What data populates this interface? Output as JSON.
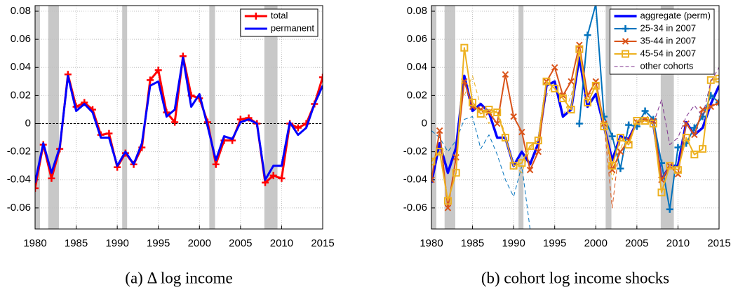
{
  "chart_data": [
    {
      "type": "line",
      "caption": "(a) Δ log income",
      "x": [
        1980,
        1981,
        1982,
        1983,
        1984,
        1985,
        1986,
        1987,
        1988,
        1989,
        1990,
        1991,
        1992,
        1993,
        1994,
        1995,
        1996,
        1997,
        1998,
        1999,
        2000,
        2001,
        2002,
        2003,
        2004,
        2005,
        2006,
        2007,
        2008,
        2009,
        2010,
        2011,
        2012,
        2013,
        2014,
        2015
      ],
      "series": [
        {
          "name": "total",
          "color": "#ff0000",
          "width": 3,
          "marker": "+",
          "values": [
            -0.046,
            -0.015,
            -0.039,
            -0.018,
            0.035,
            0.012,
            0.015,
            0.01,
            -0.008,
            -0.007,
            -0.031,
            -0.021,
            -0.029,
            -0.017,
            0.031,
            0.038,
            0.008,
            0.001,
            0.048,
            0.02,
            0.018,
            0.001,
            -0.029,
            -0.012,
            -0.012,
            0.003,
            0.004,
            0.0,
            -0.042,
            -0.037,
            -0.039,
            0.0,
            -0.003,
            0.0,
            0.014,
            0.033
          ]
        },
        {
          "name": "permanent",
          "color": "#0000ff",
          "width": 3,
          "values": [
            -0.042,
            -0.014,
            -0.035,
            -0.017,
            0.034,
            0.009,
            0.014,
            0.008,
            -0.01,
            -0.01,
            -0.03,
            -0.02,
            -0.029,
            -0.014,
            0.027,
            0.03,
            0.005,
            0.01,
            0.047,
            0.012,
            0.021,
            -0.002,
            -0.026,
            -0.009,
            -0.011,
            0.001,
            0.003,
            0.0,
            -0.04,
            -0.03,
            -0.03,
            0.001,
            -0.008,
            -0.003,
            0.014,
            0.027
          ]
        }
      ],
      "recessions": [
        [
          1980,
          1980.6
        ],
        [
          1981.6,
          1982.9
        ],
        [
          1990.6,
          1991.2
        ],
        [
          2001.2,
          2001.9
        ],
        [
          2007.9,
          2009.5
        ]
      ],
      "xlim": [
        1980,
        2015
      ],
      "xticks": [
        1980,
        1985,
        1990,
        1995,
        2000,
        2005,
        2010,
        2015
      ],
      "ylim": [
        -0.075,
        0.084
      ],
      "yticks": [
        -0.06,
        -0.04,
        -0.02,
        0,
        0.02,
        0.04,
        0.06,
        0.08
      ],
      "grid": true,
      "zero_line": true,
      "legend": "upper right"
    },
    {
      "type": "line",
      "caption": "(b) cohort log income shocks",
      "x": [
        1980,
        1981,
        1982,
        1983,
        1984,
        1985,
        1986,
        1987,
        1988,
        1989,
        1990,
        1991,
        1992,
        1993,
        1994,
        1995,
        1996,
        1997,
        1998,
        1999,
        2000,
        2001,
        2002,
        2003,
        2004,
        2005,
        2006,
        2007,
        2008,
        2009,
        2010,
        2011,
        2012,
        2013,
        2014,
        2015
      ],
      "series": [
        {
          "color": "#0072bd",
          "width": 1,
          "dash": true,
          "values": [
            -0.005,
            -0.01,
            -0.02,
            -0.012,
            0.003,
            0.005,
            -0.018,
            -0.008,
            -0.022,
            -0.04,
            -0.052,
            -0.03,
            -0.075,
            null,
            null,
            null,
            null,
            null,
            null,
            null,
            null,
            null,
            null,
            null,
            null,
            null,
            null,
            null,
            null,
            null,
            null,
            null,
            null,
            null,
            null,
            null
          ]
        },
        {
          "color": "#d95319",
          "width": 1,
          "dash": true,
          "values": [
            null,
            null,
            null,
            null,
            null,
            null,
            null,
            null,
            null,
            null,
            null,
            null,
            null,
            null,
            null,
            null,
            null,
            null,
            null,
            null,
            null,
            0.0,
            -0.06,
            -0.01,
            -0.015,
            0.003,
            null,
            null,
            null,
            null,
            null,
            null,
            null,
            null,
            null,
            null
          ]
        },
        {
          "color": "#edb120",
          "width": 1,
          "dash": true,
          "values": [
            null,
            null,
            null,
            null,
            0.02,
            0.034,
            0.012,
            0.0,
            0.01,
            -0.008,
            -0.03,
            -0.035,
            -0.018,
            -0.01,
            0.02,
            0.03,
            0.005,
            0.02,
            0.046,
            0.015,
            0.028,
            0.0,
            -0.04,
            -0.018,
            -0.005,
            null,
            null,
            null,
            null,
            null,
            null,
            null,
            null,
            null,
            null,
            null
          ]
        },
        {
          "name": "aggregate (perm)",
          "color": "#0000ff",
          "width": 3.5,
          "values": [
            -0.042,
            -0.014,
            -0.035,
            -0.017,
            0.034,
            0.009,
            0.014,
            0.008,
            -0.01,
            -0.01,
            -0.03,
            -0.02,
            -0.029,
            -0.014,
            0.027,
            0.03,
            0.005,
            0.01,
            0.047,
            0.012,
            0.021,
            -0.002,
            -0.026,
            -0.009,
            -0.011,
            0.001,
            0.003,
            0.0,
            -0.04,
            -0.03,
            -0.03,
            0.001,
            -0.008,
            -0.003,
            0.014,
            0.027
          ]
        },
        {
          "name": "25-34 in 2007",
          "color": "#0072bd",
          "width": 2,
          "marker": "+",
          "values": [
            null,
            null,
            null,
            null,
            null,
            null,
            null,
            null,
            null,
            null,
            null,
            null,
            null,
            null,
            null,
            null,
            null,
            null,
            0.0,
            0.063,
            0.085,
            0.005,
            -0.009,
            -0.032,
            -0.001,
            -0.002,
            0.009,
            0.003,
            -0.028,
            -0.061,
            -0.017,
            -0.014,
            -0.003,
            0.005,
            0.02,
            0.015
          ]
        },
        {
          "name": "35-44 in 2007",
          "color": "#d95319",
          "width": 2,
          "marker": "x",
          "values": [
            -0.04,
            -0.005,
            -0.06,
            -0.024,
            0.03,
            0.012,
            0.01,
            0.008,
            0.0,
            0.035,
            0.005,
            -0.006,
            -0.033,
            -0.02,
            0.03,
            0.04,
            0.02,
            0.03,
            0.056,
            0.02,
            0.03,
            0.0,
            -0.033,
            -0.02,
            -0.012,
            0.001,
            0.003,
            0.002,
            -0.04,
            -0.03,
            -0.036,
            0.0,
            -0.008,
            0.01,
            0.012,
            0.015
          ]
        },
        {
          "name": "45-54 in 2007",
          "color": "#edb120",
          "width": 2,
          "marker": "square",
          "values": [
            -0.027,
            -0.02,
            -0.055,
            -0.035,
            0.054,
            0.015,
            0.007,
            0.01,
            0.008,
            -0.01,
            -0.03,
            -0.028,
            -0.016,
            -0.012,
            0.03,
            0.025,
            0.018,
            0.01,
            0.053,
            0.015,
            0.027,
            -0.002,
            -0.03,
            -0.01,
            -0.015,
            0.002,
            0.002,
            0.0,
            -0.049,
            -0.03,
            -0.033,
            -0.01,
            -0.022,
            -0.018,
            0.031,
            0.032
          ]
        },
        {
          "name": "other cohorts",
          "color": "#7e2f8e",
          "width": 1,
          "dash": true,
          "values": [
            null,
            null,
            null,
            null,
            null,
            null,
            null,
            null,
            null,
            null,
            null,
            null,
            null,
            null,
            null,
            null,
            null,
            null,
            null,
            null,
            null,
            null,
            null,
            null,
            null,
            null,
            null,
            0.0,
            0.017,
            -0.015,
            -0.01,
            0.005,
            0.013,
            0.005,
            0.03,
            0.04
          ]
        }
      ],
      "recessions": [
        [
          1980,
          1980.6
        ],
        [
          1981.6,
          1982.9
        ],
        [
          1990.6,
          1991.2
        ],
        [
          2001.2,
          2001.9
        ],
        [
          2007.9,
          2009.5
        ]
      ],
      "xlim": [
        1980,
        2015
      ],
      "xticks": [
        1980,
        1985,
        1990,
        1995,
        2000,
        2005,
        2010,
        2015
      ],
      "ylim": [
        -0.075,
        0.084
      ],
      "yticks": [
        -0.06,
        -0.04,
        -0.02,
        0,
        0.02,
        0.04,
        0.06,
        0.08
      ],
      "grid": true,
      "zero_line": false,
      "legend": "upper right"
    }
  ]
}
